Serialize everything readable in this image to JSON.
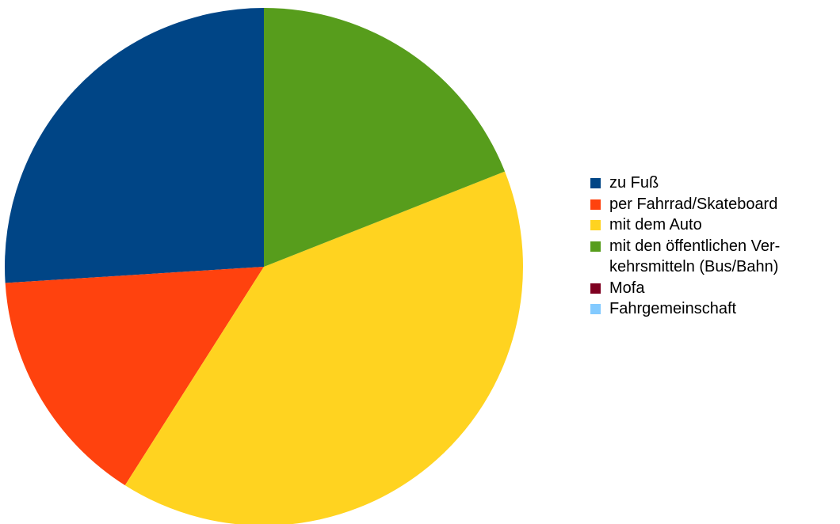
{
  "chart_data": {
    "type": "pie",
    "title": "",
    "series": [
      {
        "values": [
          26,
          15,
          40,
          19,
          0,
          0
        ]
      }
    ],
    "categories": [
      "zu Fuß",
      "per Fahrrad/Skateboard",
      "mit dem Auto",
      "mit den öffentlichen Ver-kehrsmitteln (Bus/Bahn)",
      "Mofa",
      "Fahrgemeinschaft"
    ],
    "colors": [
      "#004586",
      "#ff420e",
      "#ffd320",
      "#579d1c",
      "#7e0021",
      "#83caff"
    ],
    "legend_placement": "right",
    "start_angle_deg": 0,
    "direction": "counterclockwise",
    "legend": [
      {
        "label": "zu Fuß",
        "color": "#004586"
      },
      {
        "label": "per Fahrrad/Skateboard",
        "color": "#ff420e"
      },
      {
        "label": "mit dem Auto",
        "color": "#ffd320"
      },
      {
        "label": "mit den öffentlichen Ver-kehrsmitteln (Bus/Bahn)",
        "color": "#579d1c"
      },
      {
        "label": "Mofa",
        "color": "#7e0021"
      },
      {
        "label": "Fahrgemeinschaft",
        "color": "#83caff"
      }
    ]
  }
}
